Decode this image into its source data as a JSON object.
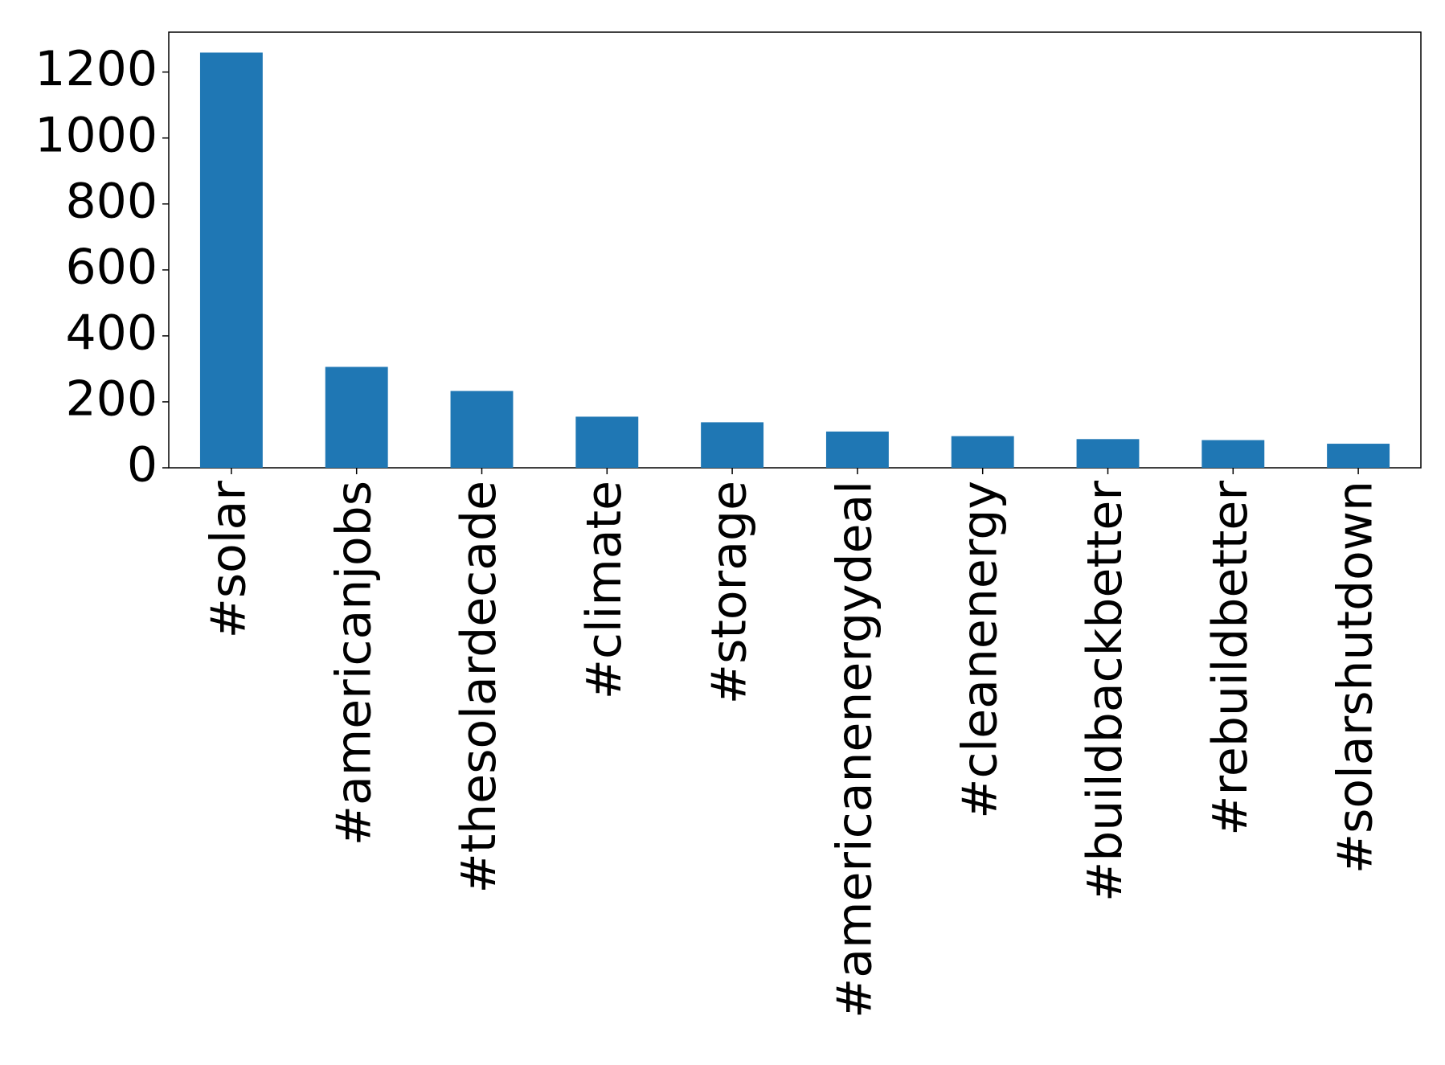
{
  "chart_data": {
    "type": "bar",
    "categories": [
      "#solar",
      "#americanjobs",
      "#thesolardecade",
      "#climate",
      "#storage",
      "#americanenergydeal",
      "#cleanenergy",
      "#buildbackbetter",
      "#rebuildbetter",
      "#solarshutdown"
    ],
    "values": [
      1259,
      306,
      233,
      155,
      138,
      110,
      96,
      87,
      84,
      73
    ],
    "color": "#1f77b4",
    "ylim": [
      0,
      1321
    ],
    "yticks": [
      0,
      200,
      400,
      600,
      800,
      1000,
      1200
    ],
    "grid": false
  }
}
